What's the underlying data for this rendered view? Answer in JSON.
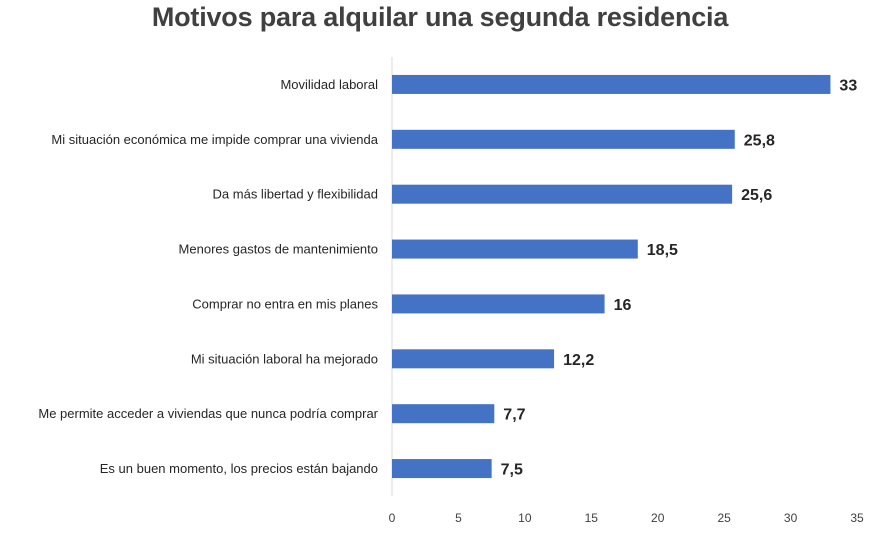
{
  "chart_data": {
    "type": "bar",
    "orientation": "horizontal",
    "title": "Motivos para alquilar una segunda residencia",
    "xlabel": "",
    "ylabel": "",
    "categories": [
      "Movilidad laboral",
      "Mi situación económica me impide comprar una vivienda",
      "Da más libertad y flexibilidad",
      "Menores gastos de mantenimiento",
      "Comprar no entra en mis planes",
      "Mi situación laboral ha mejorado",
      "Me permite acceder a viviendas que nunca podría comprar",
      "Es un buen momento, los precios están bajando"
    ],
    "values": [
      33,
      25.8,
      25.6,
      18.5,
      16,
      12.2,
      7.7,
      7.5
    ],
    "value_labels": [
      "33",
      "25,8",
      "25,6",
      "18,5",
      "16",
      "12,2",
      "7,7",
      "7,5"
    ],
    "xlim": [
      0,
      35
    ],
    "xticks": [
      0,
      5,
      10,
      15,
      20,
      25,
      30,
      35
    ],
    "bar_color": "#4472C4",
    "grid": false,
    "legend": "none"
  }
}
